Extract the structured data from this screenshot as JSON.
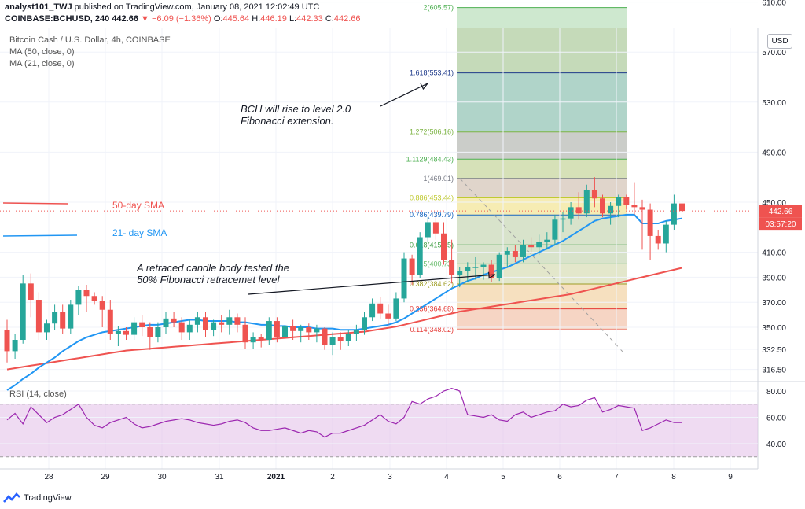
{
  "header": {
    "author": "analyst101_TWJ",
    "published": "published on TradingView.com, January 08, 2021 12:02:49 UTC",
    "symbol": "COINBASE:BCHUSD, 240",
    "last": "442.66",
    "change": "▼ −6.09 (−1.36%)",
    "o_label": "O:",
    "o_value": "445.64",
    "h_label": "H:",
    "h_value": "446.19",
    "l_label": "L:",
    "l_value": "442.33",
    "c_label": "C:",
    "c_value": "442.66"
  },
  "legend": {
    "title": "Bitcoin Cash / U.S. Dollar, 4h, COINBASE",
    "ma50": "MA (50, close, 0)",
    "ma21": "MA (21, close, 0)"
  },
  "rsi_legend": "RSI (14, close)",
  "currency_button": "USD",
  "price_tag": "442.66",
  "countdown_tag": "03:57:20",
  "footer_brand": "TradingView",
  "annotations": {
    "bch_line1": "BCH will rise to level 2.0",
    "bch_line2": "Fibonacci extension.",
    "retrace_line1": "A retraced candle body tested the",
    "retrace_line2": "50% Fibonacci retracemet level",
    "sma50_label": "50-day SMA",
    "sma21_label": "21- day SMA"
  },
  "colors": {
    "up": "#26a69a",
    "down": "#ef5350",
    "sma21": "#2196f3",
    "sma50": "#ef5350",
    "rsi": "#9c27b0",
    "rsi_band": "#e1bee7",
    "fib_box": "#d8c8a8"
  },
  "chart_data": [
    {
      "type": "candlestick",
      "title": "Bitcoin Cash / U.S. Dollar, 4h, COINBASE",
      "x_ticks": [
        "28",
        "29",
        "30",
        "31",
        "2021",
        "2",
        "3",
        "4",
        "5",
        "6",
        "7",
        "8",
        "9"
      ],
      "y_ticks": [
        316.5,
        332.5,
        350.0,
        370.0,
        390.0,
        410.0,
        450.0,
        490.0,
        530.0,
        570.0,
        610.0
      ],
      "ylim": [
        305,
        650
      ],
      "candles": [
        [
          348,
          356,
          322,
          331
        ],
        [
          331,
          345,
          325,
          340
        ],
        [
          340,
          392,
          337,
          385
        ],
        [
          385,
          393,
          358,
          372
        ],
        [
          372,
          378,
          340,
          346
        ],
        [
          346,
          356,
          340,
          353
        ],
        [
          353,
          368,
          348,
          362
        ],
        [
          362,
          368,
          345,
          349
        ],
        [
          349,
          372,
          345,
          368
        ],
        [
          368,
          383,
          360,
          380
        ],
        [
          380,
          384,
          362,
          375
        ],
        [
          375,
          378,
          368,
          371
        ],
        [
          371,
          375,
          350,
          364
        ],
        [
          364,
          372,
          340,
          345
        ],
        [
          345,
          351,
          335,
          347
        ],
        [
          347,
          350,
          340,
          344
        ],
        [
          344,
          358,
          340,
          354
        ],
        [
          354,
          360,
          343,
          350
        ],
        [
          350,
          354,
          332,
          342
        ],
        [
          342,
          354,
          338,
          350
        ],
        [
          350,
          362,
          345,
          357
        ],
        [
          357,
          362,
          350,
          354
        ],
        [
          354,
          358,
          340,
          346
        ],
        [
          346,
          356,
          340,
          352
        ],
        [
          352,
          362,
          346,
          358
        ],
        [
          358,
          362,
          342,
          348
        ],
        [
          348,
          356,
          343,
          354
        ],
        [
          354,
          360,
          346,
          352
        ],
        [
          352,
          364,
          344,
          358
        ],
        [
          358,
          361,
          346,
          352
        ],
        [
          352,
          358,
          333,
          338
        ],
        [
          338,
          346,
          333,
          342
        ],
        [
          342,
          345,
          334,
          340
        ],
        [
          340,
          358,
          336,
          355
        ],
        [
          355,
          358,
          338,
          342
        ],
        [
          342,
          354,
          337,
          351
        ],
        [
          351,
          356,
          340,
          347
        ],
        [
          347,
          352,
          338,
          350
        ],
        [
          350,
          353,
          340,
          346
        ],
        [
          346,
          352,
          338,
          349
        ],
        [
          349,
          350,
          332,
          336
        ],
        [
          336,
          346,
          328,
          342
        ],
        [
          342,
          346,
          332,
          339
        ],
        [
          339,
          348,
          335,
          345
        ],
        [
          345,
          352,
          339,
          348
        ],
        [
          348,
          362,
          344,
          358
        ],
        [
          358,
          373,
          355,
          369
        ],
        [
          369,
          374,
          357,
          361
        ],
        [
          361,
          368,
          352,
          357
        ],
        [
          357,
          378,
          355,
          373
        ],
        [
          373,
          410,
          370,
          405
        ],
        [
          405,
          408,
          384,
          392
        ],
        [
          392,
          426,
          389,
          422
        ],
        [
          422,
          438,
          418,
          434
        ],
        [
          434,
          442,
          420,
          425
        ],
        [
          425,
          434,
          400,
          404
        ],
        [
          404,
          420,
          385,
          392
        ],
        [
          392,
          398,
          382,
          395
        ],
        [
          395,
          402,
          386,
          398
        ],
        [
          398,
          406,
          388,
          398
        ],
        [
          398,
          402,
          388,
          400
        ],
        [
          400,
          404,
          386,
          389
        ],
        [
          389,
          410,
          387,
          408
        ],
        [
          408,
          414,
          398,
          411
        ],
        [
          411,
          416,
          402,
          406
        ],
        [
          406,
          420,
          402,
          416
        ],
        [
          416,
          422,
          410,
          414
        ],
        [
          414,
          424,
          408,
          418
        ],
        [
          418,
          426,
          412,
          420
        ],
        [
          420,
          440,
          416,
          436
        ],
        [
          436,
          442,
          426,
          437
        ],
        [
          437,
          450,
          432,
          446
        ],
        [
          446,
          458,
          436,
          441
        ],
        [
          441,
          464,
          438,
          460
        ],
        [
          460,
          470,
          446,
          453
        ],
        [
          453,
          456,
          438,
          441
        ],
        [
          441,
          450,
          432,
          447
        ],
        [
          447,
          456,
          438,
          454
        ],
        [
          454,
          456,
          444,
          448
        ],
        [
          448,
          466,
          440,
          446
        ],
        [
          446,
          452,
          412,
          444
        ],
        [
          444,
          449,
          404,
          423
        ],
        [
          423,
          428,
          412,
          417
        ],
        [
          417,
          435,
          410,
          432
        ],
        [
          432,
          456,
          428,
          449
        ],
        [
          449,
          450,
          441,
          443
        ]
      ],
      "sma21": [
        300,
        304,
        309,
        313,
        318,
        322,
        326,
        331,
        335,
        339,
        342,
        344,
        346,
        347,
        348,
        349,
        350,
        351,
        352,
        352,
        353,
        354,
        355,
        356,
        356,
        355,
        355,
        355,
        355,
        354,
        354,
        353,
        352,
        352,
        351,
        351,
        350,
        350,
        350,
        349,
        349,
        349,
        348,
        348,
        348,
        349,
        350,
        351,
        352,
        354,
        357,
        361,
        365,
        369,
        373,
        377,
        381,
        384,
        387,
        389,
        392,
        394,
        396,
        398,
        401,
        404,
        407,
        410,
        413,
        416,
        419,
        423,
        427,
        431,
        435,
        437,
        438,
        439,
        440,
        440,
        433,
        433,
        433,
        435,
        436,
        437
      ],
      "sma50": [
        316.5,
        317.5,
        318.5,
        319.5,
        320.5,
        321.5,
        322.5,
        323.5,
        324.5,
        325.5,
        326.5,
        327.5,
        328.5,
        329.5,
        330.5,
        331.5,
        332.0,
        332.5,
        333.0,
        333.5,
        334.0,
        334.5,
        335.0,
        335.5,
        336.0,
        336.5,
        337.0,
        337.5,
        338.0,
        338.5,
        339.0,
        339.5,
        340.0,
        340.5,
        341.0,
        341.5,
        342.0,
        342.5,
        343.0,
        343.5,
        344.0,
        344.5,
        345.0,
        345.5,
        346.0,
        346.5,
        347.5,
        348.5,
        349.5,
        350.5,
        352.0,
        353.5,
        355.0,
        356.5,
        358.0,
        359.5,
        361.0,
        362.5,
        363.5,
        364.5,
        365.5,
        366.5,
        367.5,
        368.5,
        369.5,
        370.5,
        371.5,
        372.5,
        373.5,
        374.5,
        375.5,
        376.5,
        378.0,
        379.5,
        381.0,
        382.5,
        384.0,
        385.5,
        387.0,
        388.5,
        390.0,
        391.5,
        393.0,
        394.5,
        396.0,
        397.5
      ],
      "fibonacci": [
        {
          "label": "2(605.57)",
          "value": 605.57,
          "color": "#4caf50"
        },
        {
          "label": "1.618(553.41)",
          "value": 553.41,
          "color": "#1e3a8a"
        },
        {
          "label": "1.272(506.16)",
          "value": 506.16,
          "color": "#7cb342"
        },
        {
          "label": "1.1129(484.43)",
          "value": 484.43,
          "color": "#4caf50"
        },
        {
          "label": "1(469.01)",
          "value": 469.01,
          "color": "#787b86"
        },
        {
          "label": "0.886(453.44)",
          "value": 453.44,
          "color": "#c0ca33"
        },
        {
          "label": "0.786(439.79)",
          "value": 439.79,
          "color": "#1565c0"
        },
        {
          "label": "0.618(415.85)",
          "value": 415.85,
          "color": "#43a047"
        },
        {
          "label": "0.5(400.73)",
          "value": 400.73,
          "color": "#66bb6a"
        },
        {
          "label": "0.382(384.62)",
          "value": 384.62,
          "color": "#9e9d24"
        },
        {
          "label": "0.236(364.68)",
          "value": 364.68,
          "color": "#e53935"
        },
        {
          "label": "0.114(348.02)",
          "value": 348.02,
          "color": "#e53935"
        }
      ]
    },
    {
      "type": "line",
      "title": "RSI (14, close)",
      "y_ticks": [
        40.0,
        60.0,
        80.0
      ],
      "ylim": [
        25,
        85
      ],
      "bands": [
        30,
        70
      ],
      "values": [
        58,
        63,
        55,
        68,
        62,
        56,
        60,
        62,
        66,
        70,
        60,
        54,
        52,
        56,
        58,
        60,
        55,
        52,
        53,
        55,
        57,
        58,
        59,
        58,
        56,
        55,
        54,
        55,
        57,
        58,
        56,
        52,
        50,
        50,
        51,
        52,
        50,
        48,
        50,
        49,
        45,
        48,
        48,
        50,
        52,
        54,
        58,
        62,
        57,
        55,
        60,
        72,
        70,
        74,
        76,
        80,
        82,
        80,
        62,
        61,
        60,
        62,
        58,
        57,
        62,
        64,
        60,
        62,
        64,
        65,
        70,
        68,
        69,
        73,
        75,
        64,
        66,
        69,
        68,
        67,
        50,
        52,
        55,
        58,
        56,
        56
      ]
    }
  ]
}
